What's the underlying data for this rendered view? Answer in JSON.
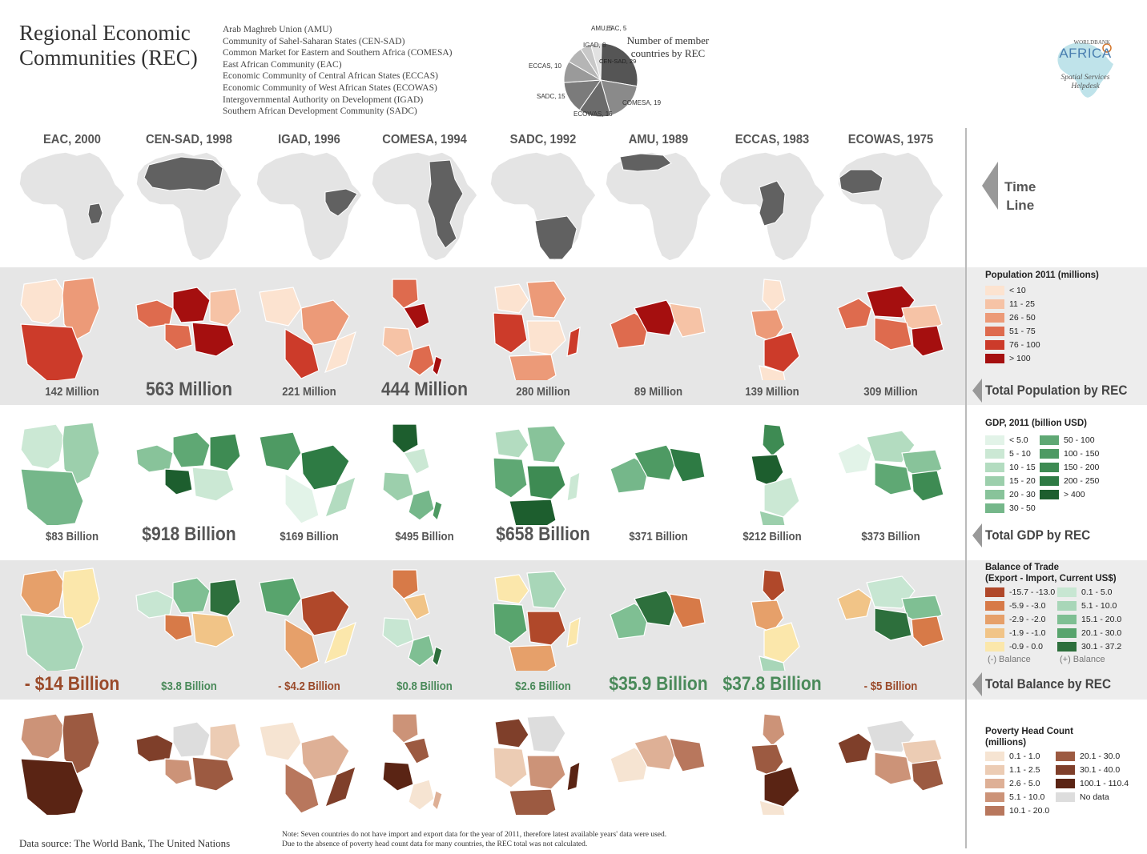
{
  "header": {
    "title_line1": "Regional Economic",
    "title_line2": "Communities (REC)",
    "rec_names": [
      "Arab Maghreb Union (AMU)",
      "Community of Sahel-Saharan States (CEN-SAD)",
      "Common Market for Eastern and Southern Africa (COMESA)",
      "East African Community (EAC)",
      "Economic Community of Central African States (ECCAS)",
      "Economic Community of West African States (ECOWAS)",
      "Intergovernmental Authority on Development (IGAD)",
      "Southern African Development Community (SADC)"
    ]
  },
  "pie": {
    "title_line1": "Number of member",
    "title_line2": "countries by REC",
    "slices": [
      {
        "label": "CEN-SAD",
        "value": 29,
        "color": "#555555"
      },
      {
        "label": "COMESA",
        "value": 19,
        "color": "#8a8a8a"
      },
      {
        "label": "ECOWAS",
        "value": 15,
        "color": "#6b6b6b"
      },
      {
        "label": "SADC",
        "value": 15,
        "color": "#7b7b7b"
      },
      {
        "label": "ECCAS",
        "value": 10,
        "color": "#9a9a9a"
      },
      {
        "label": "IGAD",
        "value": 8,
        "color": "#b5b5b5"
      },
      {
        "label": "AMU",
        "value": 5,
        "color": "#c8c8c8"
      },
      {
        "label": "EAC",
        "value": 5,
        "color": "#e2e2e2"
      }
    ],
    "labels": {
      "amu": "AMU, 5",
      "eac": "EAC, 5",
      "igad": "IGAD, 8",
      "eccas": "ECCAS, 10",
      "sadc": "SADC, 15",
      "ecowas": "ECOWAS, 15",
      "comesa": "COMESA, 19",
      "censad": "CEN-SAD, 29"
    }
  },
  "logo": {
    "line1": "WORLDBANK",
    "line2": "AFRICA",
    "line3": "Spatial Services",
    "line4": "Helpdesk"
  },
  "columns": [
    {
      "rec": "EAC, 2000"
    },
    {
      "rec": "CEN-SAD, 1998"
    },
    {
      "rec": "IGAD, 1996"
    },
    {
      "rec": "COMESA, 1994"
    },
    {
      "rec": "SADC, 1992"
    },
    {
      "rec": "AMU, 1989"
    },
    {
      "rec": "ECCAS, 1983"
    },
    {
      "rec": "ECOWAS, 1975"
    }
  ],
  "population_totals": [
    "142 Million",
    "563 Million",
    "221 Million",
    "444 Million",
    "280 Million",
    "89 Million",
    "139 Million",
    "309 Million"
  ],
  "gdp_totals": [
    "$83 Billion",
    "$918 Billion",
    "$169 Billion",
    "$495 Billion",
    "$658 Billion",
    "$371 Billion",
    "$212 Billion",
    "$373 Billion"
  ],
  "trade_totals": [
    "- $14 Billion",
    "$3.8 Billion",
    "- $4.2 Billion",
    "$0.8 Billion",
    "$2.6 Billion",
    "$35.9 Billion",
    "$37.8 Billion",
    "- $5 Billion"
  ],
  "side": {
    "timeline_line1": "Time",
    "timeline_line2": "Line",
    "pop_arrow": "Total Population by REC",
    "gdp_arrow": "Total GDP by REC",
    "trade_arrow": "Total Balance by REC"
  },
  "legends": {
    "population": {
      "title": "Population 2011 (millions)",
      "items": [
        {
          "label": "< 10",
          "color": "#fce3d0"
        },
        {
          "label": "11 - 25",
          "color": "#f6c3a6"
        },
        {
          "label": "26 - 50",
          "color": "#ec9a78"
        },
        {
          "label": "51 - 75",
          "color": "#de6b4e"
        },
        {
          "label": "76 - 100",
          "color": "#cc3b2a"
        },
        {
          "label": "> 100",
          "color": "#a50f0f"
        }
      ]
    },
    "gdp": {
      "title": "GDP, 2011 (billion USD)",
      "items": [
        {
          "label": "< 5.0",
          "color": "#e2f3e8"
        },
        {
          "label": "5 - 10",
          "color": "#cbe8d4"
        },
        {
          "label": "10 - 15",
          "color": "#b3dcc0"
        },
        {
          "label": "15 - 20",
          "color": "#9ccfac"
        },
        {
          "label": "20 - 30",
          "color": "#88c39a"
        },
        {
          "label": "30 - 50",
          "color": "#75b78a"
        },
        {
          "label": "50 - 100",
          "color": "#5fa874"
        },
        {
          "label": "100 - 150",
          "color": "#4e9a63"
        },
        {
          "label": "150 - 200",
          "color": "#3e8b53"
        },
        {
          "label": "200 - 250",
          "color": "#2e7b44"
        },
        {
          "label": "> 400",
          "color": "#1d5e2e"
        }
      ]
    },
    "trade": {
      "title_line1": "Balance of Trade",
      "title_line2": "(Export - Import, Current US$)",
      "items": [
        {
          "label": "-15.7 - -13.0",
          "color": "#b0482a"
        },
        {
          "label": "-5.9 - -3.0",
          "color": "#d77a48"
        },
        {
          "label": "-2.9 - -2.0",
          "color": "#e6a06a"
        },
        {
          "label": "-1.9 - -1.0",
          "color": "#f1c487"
        },
        {
          "label": "-0.9 - 0.0",
          "color": "#fbe7ab"
        },
        {
          "label": "0.1 - 5.0",
          "color": "#c7e6d2"
        },
        {
          "label": "5.1 - 10.0",
          "color": "#a8d6b8"
        },
        {
          "label": "15.1 - 20.0",
          "color": "#7fbf93"
        },
        {
          "label": "20.1 - 30.0",
          "color": "#58a46d"
        },
        {
          "label": "30.1 - 37.2",
          "color": "#2d6f3c"
        }
      ],
      "neg_label": "(-) Balance",
      "pos_label": "(+) Balance"
    },
    "poverty": {
      "title_line1": "Poverty Head Count",
      "title_line2": "(millions)",
      "items": [
        {
          "label": "0.1 - 1.0",
          "color": "#f6e4d2"
        },
        {
          "label": "1.1 - 2.5",
          "color": "#ecccb4"
        },
        {
          "label": "2.6 - 5.0",
          "color": "#deb096"
        },
        {
          "label": "5.1 - 10.0",
          "color": "#cc9378"
        },
        {
          "label": "10.1 - 20.0",
          "color": "#b8775d"
        },
        {
          "label": "20.1 - 30.0",
          "color": "#9c5a41"
        },
        {
          "label": "30.1 - 40.0",
          "color": "#7f3f2a"
        },
        {
          "label": "100.1 - 110.4",
          "color": "#5a2414"
        },
        {
          "label": "No data",
          "color": "#dddddd"
        }
      ]
    }
  },
  "footer": {
    "source": "Data source: The World Bank, The United Nations",
    "note_line1": "Note: Seven countries do not have import and export data for the year of 2011, therefore latest available years' data were used.",
    "note_line2": "Due to the absence of poverty head count data for many countries, the REC total was not calculated."
  }
}
